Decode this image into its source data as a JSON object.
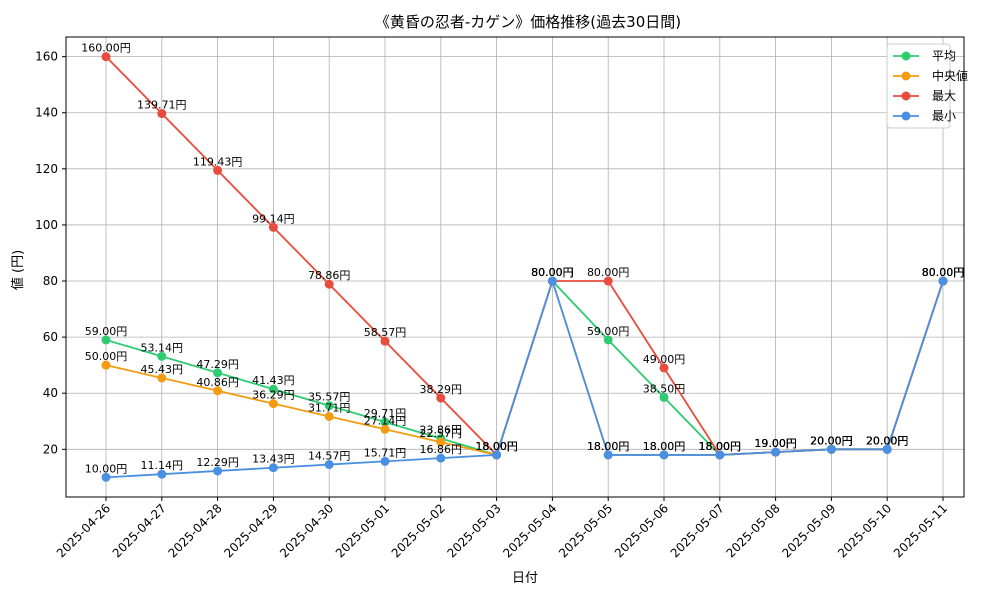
{
  "chart_data": {
    "type": "line",
    "title": "《黄昏の忍者-カゲン》価格推移(過去30日間)",
    "xlabel": "日付",
    "ylabel": "値 (円)",
    "ylim": [
      3,
      167
    ],
    "yticks": [
      20,
      40,
      60,
      80,
      100,
      120,
      140,
      160
    ],
    "grid": true,
    "legend_position": "top-right",
    "categories": [
      "2025-04-26",
      "2025-04-27",
      "2025-04-28",
      "2025-04-29",
      "2025-04-30",
      "2025-05-01",
      "2025-05-02",
      "2025-05-03",
      "2025-05-04",
      "2025-05-05",
      "2025-05-06",
      "2025-05-07",
      "2025-05-08",
      "2025-05-09",
      "2025-05-10",
      "2025-05-11"
    ],
    "series": [
      {
        "name": "平均",
        "color": "#2ecc71",
        "values": [
          59.0,
          53.14,
          47.29,
          41.43,
          35.57,
          29.71,
          23.86,
          18.0,
          80.0,
          59.0,
          38.5,
          18.0,
          19.0,
          20.0,
          20.0,
          80.0
        ],
        "labels": [
          "59.00円",
          "53.14円",
          "47.29円",
          "41.43円",
          "35.57円",
          "29.71円",
          "23.86円",
          "18.00円",
          "80.00円",
          "59.00円",
          "38.50円",
          "18.00円",
          "19.00円",
          "20.00円",
          "20.00円",
          "80.00円"
        ]
      },
      {
        "name": "中央値",
        "color": "#f39c12",
        "values": [
          50.0,
          45.43,
          40.86,
          36.29,
          31.71,
          27.14,
          22.57,
          18.0,
          80.0,
          18.0,
          18.0,
          18.0,
          19.0,
          20.0,
          20.0,
          80.0
        ],
        "labels": [
          "50.00円",
          "45.43円",
          "40.86円",
          "36.29円",
          "31.71円",
          "27.14円",
          "22.57円",
          "18.00円",
          "80.00円",
          "18.00円",
          "18.00円",
          "18.00円",
          "19.00円",
          "20.00円",
          "20.00円",
          "80.00円"
        ]
      },
      {
        "name": "最大",
        "color": "#e74c3c",
        "values": [
          160.0,
          139.71,
          119.43,
          99.14,
          78.86,
          58.57,
          38.29,
          18.0,
          80.0,
          80.0,
          49.0,
          18.0,
          19.0,
          20.0,
          20.0,
          80.0
        ],
        "labels": [
          "160.00円",
          "139.71円",
          "119.43円",
          "99.14円",
          "78.86円",
          "58.57円",
          "38.29円",
          "18.00円",
          "80.00円",
          "80.00円",
          "49.00円",
          "18.00円",
          "19.00円",
          "20.00円",
          "20.00円",
          "80.00円"
        ]
      },
      {
        "name": "最小",
        "color": "#4a90e2",
        "values": [
          10.0,
          11.14,
          12.29,
          13.43,
          14.57,
          15.71,
          16.86,
          18.0,
          80.0,
          18.0,
          18.0,
          18.0,
          19.0,
          20.0,
          20.0,
          80.0
        ],
        "labels": [
          "10.00円",
          "11.14円",
          "12.29円",
          "13.43円",
          "14.57円",
          "15.71円",
          "16.86円",
          "18.00円",
          "80.00円",
          "18.00円",
          "18.00円",
          "18.00円",
          "19.00円",
          "20.00円",
          "20.00円",
          "80.00円"
        ]
      }
    ]
  }
}
